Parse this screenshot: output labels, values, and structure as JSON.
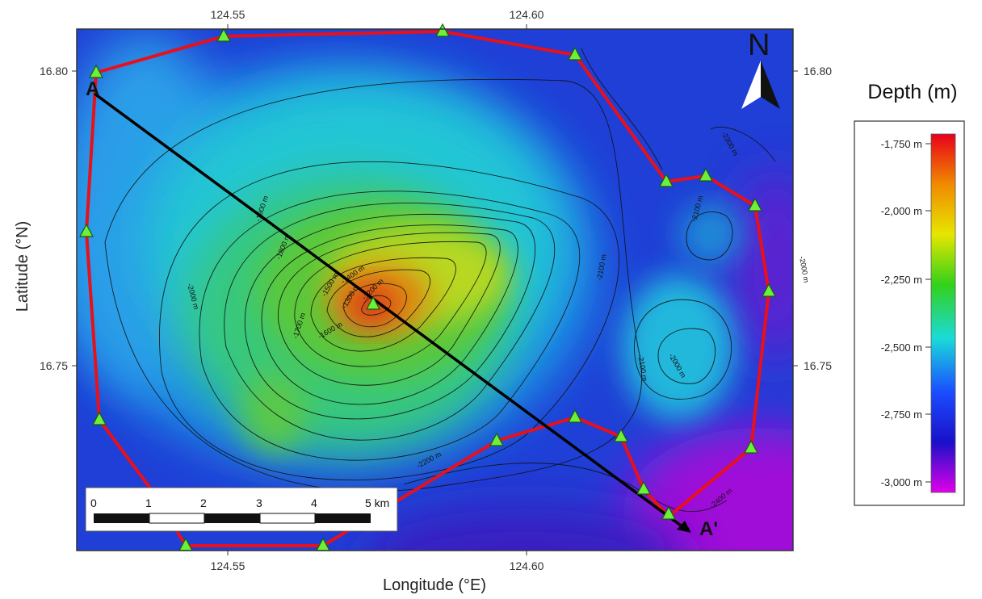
{
  "map": {
    "x_ticks": [
      "124.55",
      "124.60"
    ],
    "y_ticks": [
      "16.80",
      "16.75"
    ],
    "x_axis_title": "Longitude (°E)",
    "y_axis_title": "Latitude (°N)",
    "north_label": "N",
    "profile_start_label": "A",
    "profile_end_label": "A'"
  },
  "contour_labels": [
    "-1900 m",
    "-1800 m",
    "-1500 m",
    "-1400 m",
    "-1300 m",
    "-1200 m",
    "-1700 m",
    "-1600 m",
    "-2000 m",
    "-2100 m",
    "-2100 m",
    "-2000 m",
    "-2100 m",
    "-2000 m",
    "-2200 m",
    "-2300 m",
    "-2400 m"
  ],
  "scale_bar": {
    "labels": [
      "0",
      "1",
      "2",
      "3",
      "4",
      "5 km"
    ]
  },
  "legend": {
    "title": "Depth (m)",
    "ticks": [
      "-1,750 m",
      "-2,000 m",
      "-2,250 m",
      "-2,500 m",
      "-2,750 m",
      "-3,000 m"
    ],
    "colors": [
      "#e8001a",
      "#f08a00",
      "#e6e600",
      "#33d11a",
      "#1adbd9",
      "#1a4dff",
      "#1a10c9",
      "#e000e8"
    ]
  }
}
